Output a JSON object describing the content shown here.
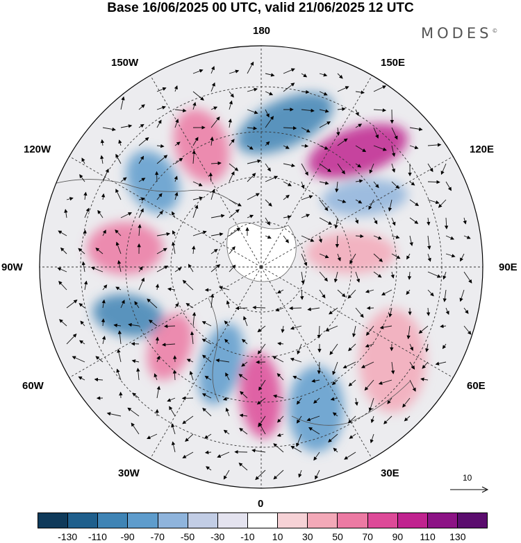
{
  "title": "Base 16/06/2025 00 UTC, valid 21/06/2025 12 UTC",
  "brand": "MODES",
  "brand_mark": "©",
  "longitude_labels": {
    "top": "180",
    "top_left": "150W",
    "top_right": "150E",
    "upper_left": "120W",
    "upper_right": "120E",
    "left": "90W",
    "right": "90E",
    "lower_left": "60W",
    "lower_right": "60E",
    "bottom_left": "30W",
    "bottom_right": "30E",
    "bottom": "0"
  },
  "reference_vector": {
    "label": "10"
  },
  "colorbar": {
    "ticks": [
      "-130",
      "-110",
      "-90",
      "-70",
      "-50",
      "-30",
      "-10",
      "10",
      "30",
      "50",
      "70",
      "90",
      "110",
      "130"
    ],
    "colors": [
      "#0f3a5a",
      "#1f5f8c",
      "#3f84b5",
      "#5e9ccc",
      "#8fb4dc",
      "#c2cde5",
      "#e4e3ef",
      "#ffffff",
      "#f6d2d6",
      "#f3a9b8",
      "#ec7aa3",
      "#dd4a98",
      "#c0238f",
      "#8c1385",
      "#5b0d6e"
    ]
  },
  "map": {
    "projection": "north polar stereographic",
    "field": "anomaly shading with wind vectors",
    "anomaly_centers": [
      {
        "lon_side": "150E-120E",
        "sign": "positive",
        "color": "#c0238f"
      },
      {
        "lon_side": "180-150E",
        "sign": "negative",
        "color": "#3f84b5"
      },
      {
        "lon_side": "150W",
        "sign": "positive",
        "color": "#ec7aa3"
      },
      {
        "lon_side": "120W",
        "sign": "negative",
        "color": "#5e9ccc"
      },
      {
        "lon_side": "90W",
        "sign": "positive",
        "color": "#ec7aa3"
      },
      {
        "lon_side": "60W-90W",
        "sign": "negative",
        "color": "#3f84b5"
      },
      {
        "lon_side": "60W",
        "sign": "positive",
        "color": "#ec7aa3"
      },
      {
        "lon_side": "30W",
        "sign": "negative",
        "color": "#5e9ccc"
      },
      {
        "lon_side": "0",
        "sign": "positive",
        "color": "#dd4a98"
      },
      {
        "lon_side": "30E",
        "sign": "negative",
        "color": "#5e9ccc"
      },
      {
        "lon_side": "60E",
        "sign": "positive",
        "color": "#f3a9b8"
      },
      {
        "lon_side": "90E",
        "sign": "positive",
        "color": "#f3a9b8"
      },
      {
        "lon_side": "120E",
        "sign": "negative",
        "color": "#8fb4dc"
      }
    ]
  }
}
